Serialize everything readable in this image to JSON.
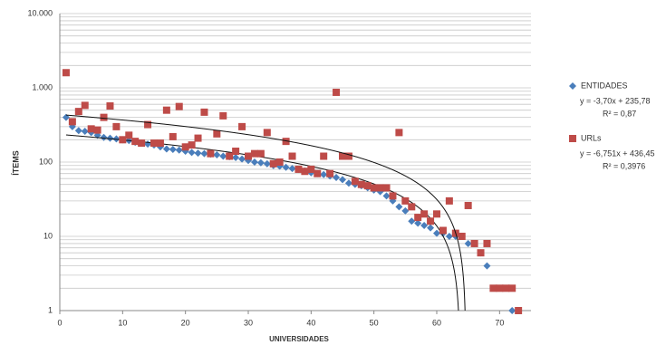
{
  "chart_data": {
    "type": "scatter",
    "log_y": true,
    "grid": true,
    "x_label": "UNIVERSIDADES",
    "y_label": "ÍTEMS",
    "xlim": [
      0,
      75
    ],
    "xticks": [
      0,
      10,
      20,
      30,
      40,
      50,
      60,
      70
    ],
    "ylim": [
      1,
      10000
    ],
    "yticks": [
      1,
      10,
      100,
      {
        "value": 1000,
        "label": "1.000"
      },
      {
        "value": 10000,
        "label": "10.000"
      }
    ],
    "yminorticks": [
      2,
      3,
      4,
      5,
      6,
      7,
      8,
      9,
      20,
      30,
      40,
      50,
      60,
      70,
      80,
      90,
      200,
      300,
      400,
      500,
      600,
      700,
      800,
      900,
      2000,
      3000,
      4000,
      5000,
      6000,
      7000,
      8000,
      9000
    ],
    "series": [
      {
        "name": "ENTIDADES",
        "color": "#4a7ebb",
        "marker": "diamond",
        "x": [
          1,
          2,
          3,
          4,
          5,
          6,
          7,
          8,
          9,
          10,
          11,
          12,
          13,
          14,
          15,
          16,
          17,
          18,
          19,
          20,
          21,
          22,
          23,
          24,
          25,
          26,
          27,
          28,
          29,
          30,
          31,
          32,
          33,
          34,
          35,
          36,
          37,
          38,
          39,
          40,
          41,
          42,
          43,
          44,
          45,
          46,
          47,
          48,
          49,
          50,
          51,
          52,
          53,
          54,
          55,
          56,
          57,
          58,
          59,
          60,
          61,
          62,
          63,
          64,
          65,
          66,
          67,
          68,
          72
        ],
        "values": [
          400,
          300,
          265,
          260,
          250,
          230,
          215,
          210,
          205,
          200,
          195,
          185,
          180,
          175,
          170,
          160,
          150,
          148,
          145,
          140,
          135,
          132,
          130,
          128,
          125,
          120,
          118,
          115,
          110,
          105,
          100,
          98,
          95,
          90,
          88,
          85,
          82,
          80,
          76,
          72,
          70,
          68,
          65,
          62,
          58,
          52,
          50,
          48,
          45,
          42,
          40,
          35,
          30,
          25,
          22,
          16,
          15,
          14,
          13,
          11,
          11,
          10,
          10,
          10,
          8,
          8,
          6,
          4,
          1
        ],
        "trend": {
          "slope": -3.7,
          "intercept": 235.78,
          "label": "y = -3,70x + 235,78",
          "r2": 0.87,
          "r2_label": "R² = 0,87"
        }
      },
      {
        "name": "URLs",
        "color": "#be4b48",
        "marker": "square",
        "x": [
          1,
          2,
          3,
          4,
          5,
          6,
          7,
          8,
          9,
          10,
          11,
          12,
          13,
          14,
          15,
          16,
          17,
          18,
          19,
          20,
          21,
          22,
          23,
          24,
          25,
          26,
          27,
          28,
          29,
          30,
          31,
          32,
          33,
          34,
          35,
          36,
          37,
          38,
          39,
          40,
          41,
          42,
          43,
          44,
          45,
          46,
          47,
          48,
          49,
          50,
          51,
          52,
          53,
          54,
          55,
          56,
          57,
          58,
          59,
          60,
          61,
          62,
          63,
          64,
          65,
          66,
          67,
          68,
          69,
          70,
          71,
          72,
          73
        ],
        "values": [
          1600,
          350,
          480,
          580,
          280,
          270,
          400,
          570,
          300,
          200,
          230,
          190,
          180,
          320,
          180,
          180,
          500,
          220,
          560,
          160,
          170,
          210,
          470,
          130,
          240,
          420,
          120,
          140,
          300,
          120,
          130,
          130,
          250,
          95,
          100,
          190,
          120,
          80,
          75,
          80,
          70,
          120,
          70,
          870,
          120,
          120,
          55,
          50,
          48,
          45,
          45,
          45,
          35,
          250,
          30,
          25,
          18,
          20,
          16,
          20,
          12,
          30,
          11,
          10,
          26,
          8,
          6,
          8,
          2,
          2,
          2,
          2,
          1
        ],
        "trend": {
          "slope": -6.751,
          "intercept": 436.45,
          "label": "y = -6,751x + 436,45",
          "r2": 0.3976,
          "r2_label": "R² = 0,3976"
        }
      }
    ]
  }
}
